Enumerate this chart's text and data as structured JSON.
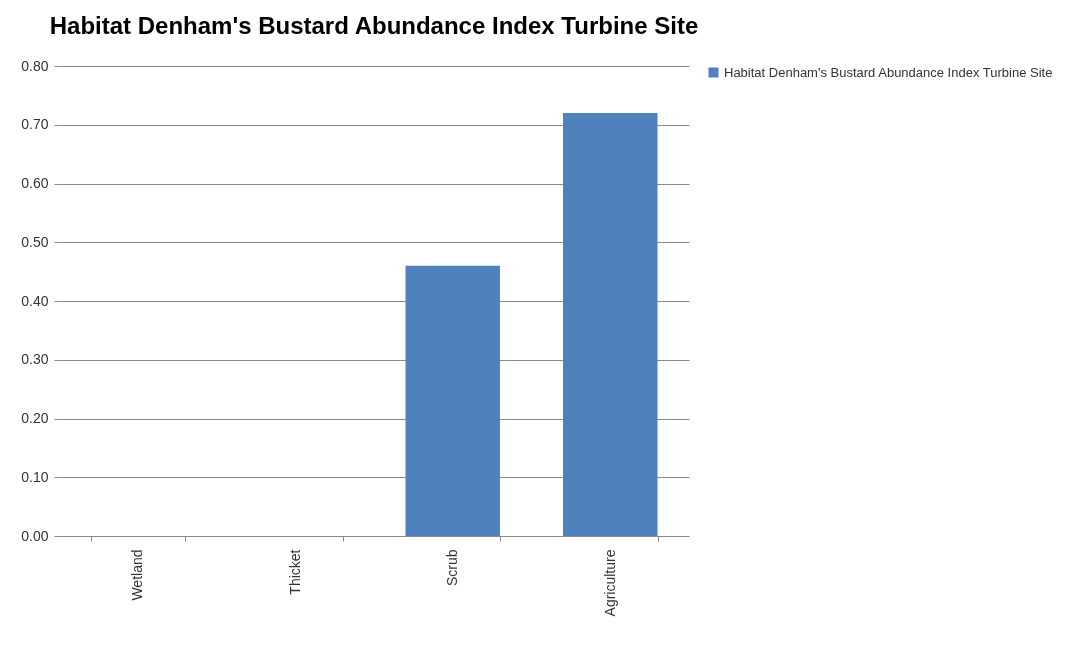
{
  "chart_data": {
    "type": "bar",
    "title": "Habitat Denham's Bustard Abundance Index Turbine Site",
    "categories": [
      "Wetland",
      "Thicket",
      "Scrub",
      "Agriculture"
    ],
    "series": [
      {
        "name": "Habitat Denham's Bustard Abundance Index Turbine Site",
        "color": "#4f81bd",
        "values": [
          0,
          0,
          0.46,
          0.72
        ]
      }
    ],
    "ylim": [
      0,
      0.8
    ],
    "yticks": [
      {
        "value": 0,
        "label": "0.00"
      },
      {
        "value": 0.1,
        "label": "0.10"
      },
      {
        "value": 0.2,
        "label": "0.20"
      },
      {
        "value": 0.3,
        "label": "0.30"
      },
      {
        "value": 0.4,
        "label": "0.40"
      },
      {
        "value": 0.5,
        "label": "0.50"
      },
      {
        "value": 0.6,
        "label": "0.60"
      },
      {
        "value": 0.7,
        "label": "0.70"
      },
      {
        "value": 0.8,
        "label": "0.80"
      }
    ],
    "grid": "y",
    "legend": "right"
  }
}
